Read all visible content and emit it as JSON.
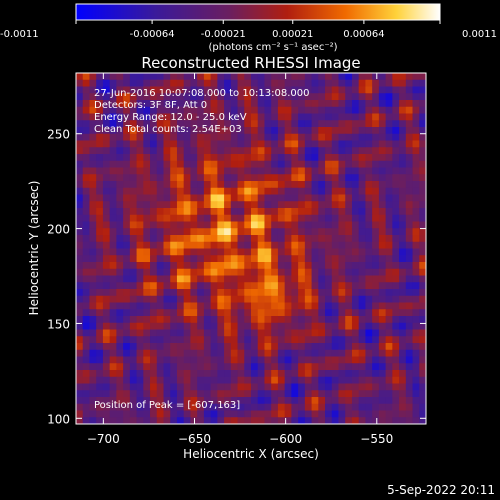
{
  "chart_data": {
    "type": "heatmap",
    "title": "Reconstructed RHESSI Image",
    "xlabel": "Heliocentric X (arcsec)",
    "ylabel": "Heliocentric Y (arcsec)",
    "xlim": [
      -715,
      -523
    ],
    "ylim": [
      97,
      282
    ],
    "x_ticks": [
      -700,
      -650,
      -600,
      -550
    ],
    "y_ticks": [
      100,
      150,
      200,
      250
    ],
    "colorbar": {
      "ticks": [
        "-0.0011",
        "-0.00064",
        "-0.00021",
        "0.00021",
        "0.00064",
        "0.0011"
      ],
      "range": [
        -0.0011,
        0.0011
      ],
      "unit_label": "(photons cm⁻² s⁻¹ asec⁻²)"
    },
    "annotations": [
      "27-Jun-2016 10:07:08.000 to 10:13:08.000",
      "Detectors: 3F 8F, Att 0",
      "Energy Range: 12.0 - 25.0 keV",
      "Clean     Total counts: 2.54E+03"
    ],
    "peak_label": "Position of Peak = [-607,163]",
    "peak": [
      -607,
      163
    ],
    "footer_date": "5-Sep-2022 20:11",
    "colors": {
      "background": "#000000",
      "text": "#ffffff",
      "colormap": [
        "#0000ff",
        "#2a1a8f",
        "#5a1e6a",
        "#a01e1e",
        "#e64b00",
        "#ffb400",
        "#ffff80",
        "#ffffff"
      ]
    }
  }
}
